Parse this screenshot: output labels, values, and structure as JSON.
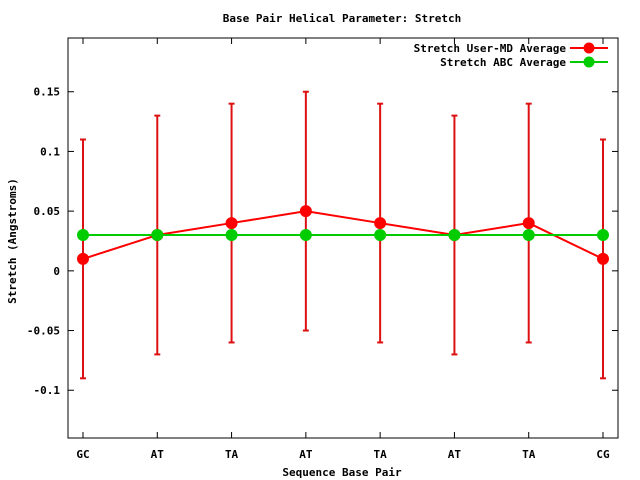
{
  "chart_data": {
    "type": "line",
    "title": "Base Pair Helical Parameter: Stretch",
    "xlabel": "Sequence Base Pair",
    "ylabel": "Stretch (Angstroms)",
    "categories": [
      "GC",
      "AT",
      "TA",
      "AT",
      "TA",
      "AT",
      "TA",
      "CG"
    ],
    "ylim": [
      -0.14,
      0.195
    ],
    "yticks": [
      -0.1,
      -0.05,
      0,
      0.05,
      0.1,
      0.15
    ],
    "ytick_labels": [
      "-0.1",
      "-0.05",
      "0",
      "0.05",
      "0.1",
      "0.15"
    ],
    "grid": false,
    "legend_position": "top-right",
    "series": [
      {
        "name": "Stretch User-MD Average",
        "color": "#ff0000",
        "errorbar_color": "#dd1111",
        "values": [
          0.01,
          0.03,
          0.04,
          0.05,
          0.04,
          0.03,
          0.04,
          0.01
        ],
        "error_high": [
          0.11,
          0.13,
          0.14,
          0.15,
          0.14,
          0.13,
          0.14,
          0.11
        ],
        "error_low": [
          -0.09,
          -0.07,
          -0.06,
          -0.05,
          -0.06,
          -0.07,
          -0.06,
          -0.09
        ]
      },
      {
        "name": "Stretch ABC Average",
        "color": "#00cc00",
        "values": [
          0.03,
          0.03,
          0.03,
          0.03,
          0.03,
          0.03,
          0.03,
          0.03
        ]
      }
    ]
  }
}
